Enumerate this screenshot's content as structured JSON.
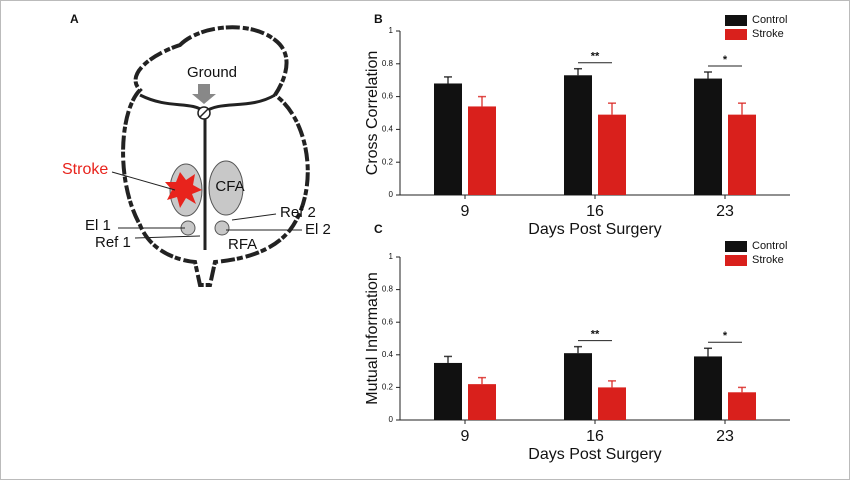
{
  "panels": {
    "a": "A",
    "b": "B",
    "c": "C"
  },
  "diagram": {
    "ground": "Ground",
    "stroke": "Stroke",
    "cfa": "CFA",
    "el1": "El 1",
    "ref1": "Ref 1",
    "ref2": "Ref 2",
    "el2": "El 2",
    "rfa": "RFA"
  },
  "chart_data": [
    {
      "type": "bar",
      "ylabel": "Cross Correlation",
      "xlabel": "Days Post Surgery",
      "categories": [
        "9",
        "16",
        "23"
      ],
      "series": [
        {
          "name": "Control",
          "color": "#111111",
          "values": [
            0.68,
            0.73,
            0.71
          ],
          "errors": [
            0.04,
            0.04,
            0.04
          ]
        },
        {
          "name": "Stroke",
          "color": "#d9201c",
          "values": [
            0.54,
            0.49,
            0.49
          ],
          "errors": [
            0.06,
            0.07,
            0.07
          ]
        }
      ],
      "significance": [
        null,
        "**",
        "*"
      ],
      "ylim": [
        0,
        1
      ],
      "yticks": [
        0,
        0.2,
        0.4,
        0.6,
        0.8,
        1
      ],
      "legend": "upper right"
    },
    {
      "type": "bar",
      "ylabel": "Mutual Information",
      "xlabel": "Days Post Surgery",
      "categories": [
        "9",
        "16",
        "23"
      ],
      "series": [
        {
          "name": "Control",
          "color": "#111111",
          "values": [
            0.35,
            0.41,
            0.39
          ],
          "errors": [
            0.04,
            0.04,
            0.05
          ]
        },
        {
          "name": "Stroke",
          "color": "#d9201c",
          "values": [
            0.22,
            0.2,
            0.17
          ],
          "errors": [
            0.04,
            0.04,
            0.03
          ]
        }
      ],
      "significance": [
        null,
        "**",
        "*"
      ],
      "ylim": [
        0,
        1
      ],
      "yticks": [
        0,
        0.2,
        0.4,
        0.6,
        0.8,
        1
      ],
      "legend": "upper right"
    }
  ]
}
